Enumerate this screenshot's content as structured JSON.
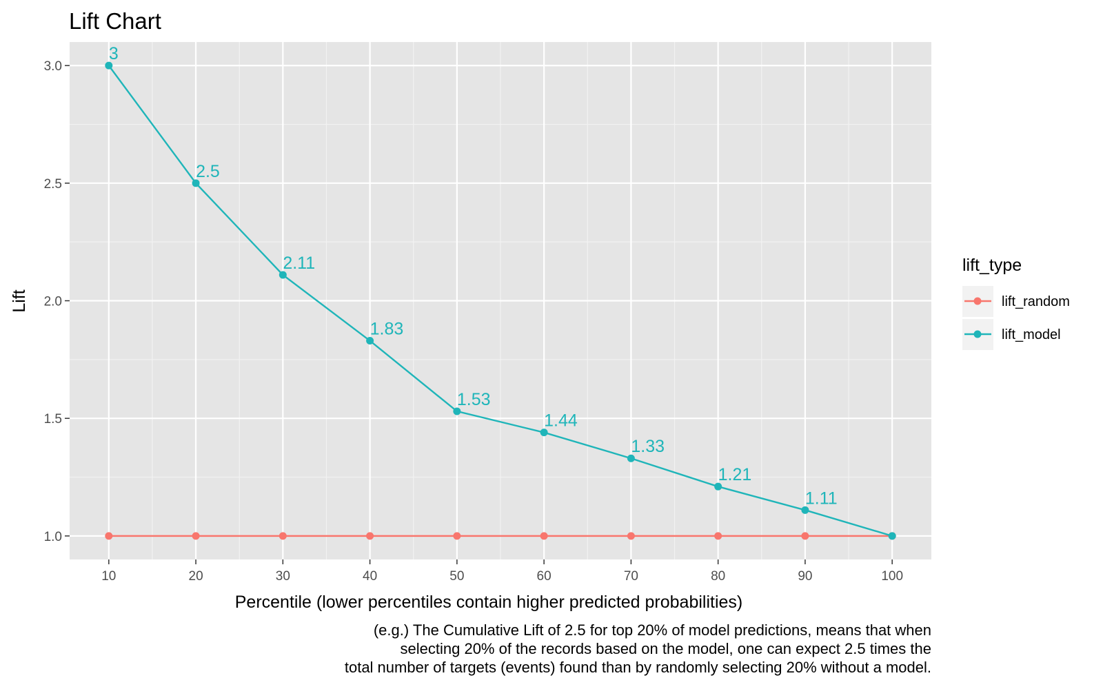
{
  "chart_data": {
    "type": "line",
    "title": "Lift Chart",
    "xlabel": "Percentile (lower percentiles contain higher predicted probabilities)",
    "ylabel": "Lift",
    "x": [
      10,
      20,
      30,
      40,
      50,
      60,
      70,
      80,
      90,
      100
    ],
    "xlim": [
      5.5,
      104.5
    ],
    "ylim": [
      0.9,
      3.1
    ],
    "xticks": [
      "10",
      "20",
      "30",
      "40",
      "50",
      "60",
      "70",
      "80",
      "90",
      "100"
    ],
    "yticks": [
      "1.0",
      "1.5",
      "2.0",
      "2.5",
      "3.0"
    ],
    "grid": true,
    "legend_position": "right",
    "legend_title": "lift_type",
    "series": [
      {
        "name": "lift_random",
        "color": "#f8766d",
        "values": [
          1,
          1,
          1,
          1,
          1,
          1,
          1,
          1,
          1,
          1
        ]
      },
      {
        "name": "lift_model",
        "color": "#1fb5b9",
        "values": [
          3,
          2.5,
          2.11,
          1.83,
          1.53,
          1.44,
          1.33,
          1.21,
          1.11,
          1
        ],
        "data_labels": [
          "3",
          "2.5",
          "2.11",
          "1.83",
          "1.53",
          "1.44",
          "1.33",
          "1.21",
          "1.11"
        ]
      }
    ],
    "caption": [
      "(e.g.) The Cumulative Lift of 2.5 for top 20% of model predictions, means that when",
      "selecting 20% of the records based on the model, one can expect 2.5 times the",
      "total number of targets (events) found than by randomly selecting 20% without a model."
    ]
  }
}
